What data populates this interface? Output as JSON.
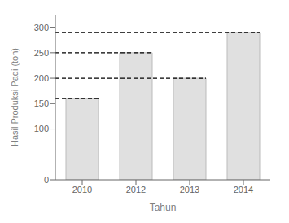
{
  "chart_data": {
    "type": "bar",
    "categories": [
      "2010",
      "2012",
      "2013",
      "2014"
    ],
    "values": [
      160,
      250,
      200,
      290
    ],
    "color": "#e0e0e0",
    "xlabel": "Tahun",
    "ylabel": "Hasil Produksi Padi (ton)",
    "ylim": [
      0,
      325
    ],
    "yticks": [
      0,
      100,
      150,
      200,
      250,
      300
    ],
    "grid": false,
    "dashed_lines": [
      {
        "value": 160,
        "category": "2010"
      },
      {
        "value": 200,
        "category": "2013"
      },
      {
        "value": 250,
        "category": "2012"
      },
      {
        "value": 290,
        "category": "2014"
      }
    ]
  }
}
